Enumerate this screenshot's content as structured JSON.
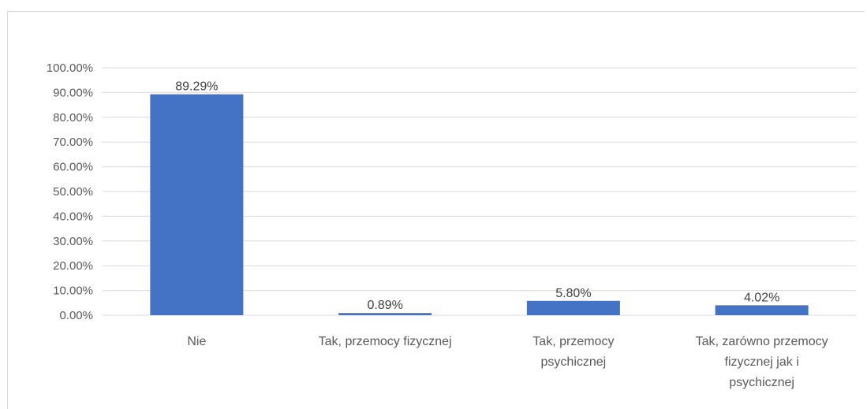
{
  "chart_data": {
    "type": "bar",
    "title": "",
    "xlabel": "",
    "ylabel": "",
    "categories": [
      [
        "Nie"
      ],
      [
        "Tak, przemocy fizycznej"
      ],
      [
        "Tak, przemocy",
        "psychicznej"
      ],
      [
        "Tak, zarówno przemocy",
        "fizycznej jak i",
        "psychicznej"
      ]
    ],
    "values": [
      89.29,
      0.89,
      5.8,
      4.02
    ],
    "value_labels": [
      "89.29%",
      "0.89%",
      "5.80%",
      "4.02%"
    ],
    "ylim": [
      0,
      100
    ],
    "yticks": [
      0,
      10,
      20,
      30,
      40,
      50,
      60,
      70,
      80,
      90,
      100
    ],
    "ytick_labels": [
      "0.00%",
      "10.00%",
      "20.00%",
      "30.00%",
      "40.00%",
      "50.00%",
      "60.00%",
      "70.00%",
      "80.00%",
      "90.00%",
      "100.00%"
    ],
    "grid": true,
    "legend": false,
    "bar_color": "#4472c4",
    "grid_color": "#d9d9d9"
  }
}
